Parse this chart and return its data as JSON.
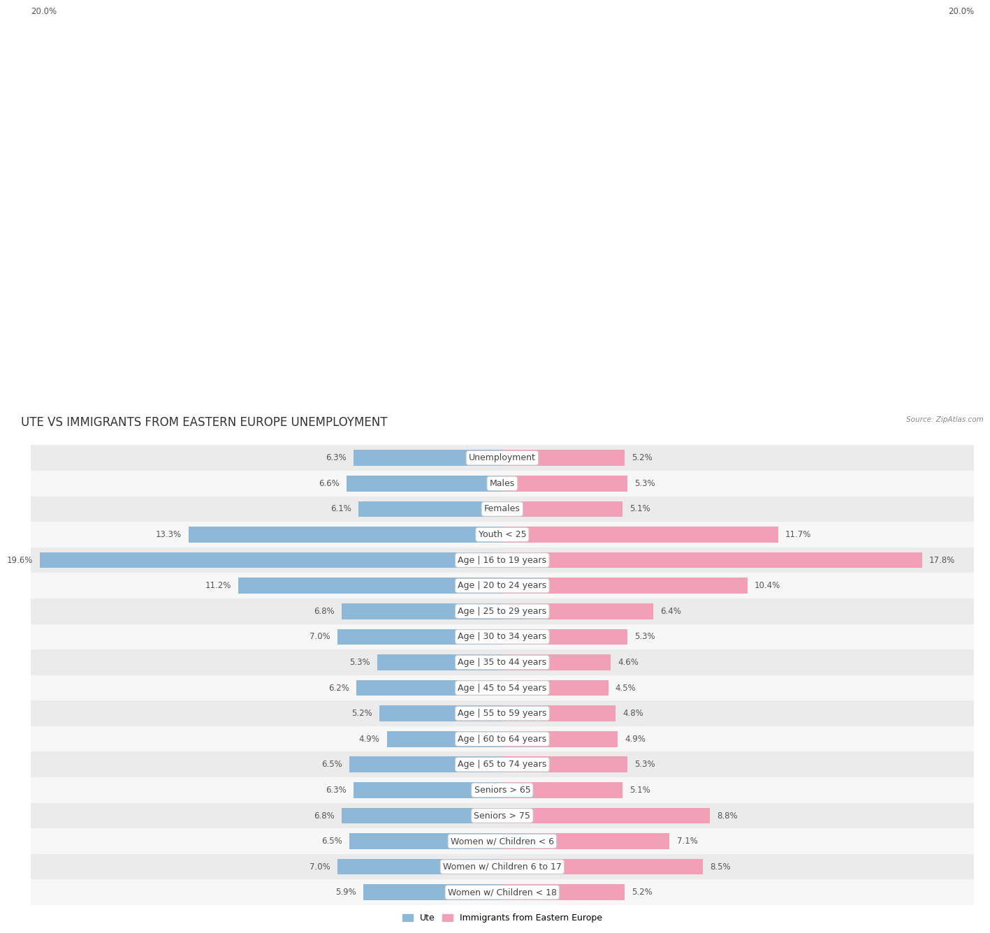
{
  "title": "UTE VS IMMIGRANTS FROM EASTERN EUROPE UNEMPLOYMENT",
  "source": "Source: ZipAtlas.com",
  "categories": [
    "Unemployment",
    "Males",
    "Females",
    "Youth < 25",
    "Age | 16 to 19 years",
    "Age | 20 to 24 years",
    "Age | 25 to 29 years",
    "Age | 30 to 34 years",
    "Age | 35 to 44 years",
    "Age | 45 to 54 years",
    "Age | 55 to 59 years",
    "Age | 60 to 64 years",
    "Age | 65 to 74 years",
    "Seniors > 65",
    "Seniors > 75",
    "Women w/ Children < 6",
    "Women w/ Children 6 to 17",
    "Women w/ Children < 18"
  ],
  "ute_values": [
    6.3,
    6.6,
    6.1,
    13.3,
    19.6,
    11.2,
    6.8,
    7.0,
    5.3,
    6.2,
    5.2,
    4.9,
    6.5,
    6.3,
    6.8,
    6.5,
    7.0,
    5.9
  ],
  "immigrant_values": [
    5.2,
    5.3,
    5.1,
    11.7,
    17.8,
    10.4,
    6.4,
    5.3,
    4.6,
    4.5,
    4.8,
    4.9,
    5.3,
    5.1,
    8.8,
    7.1,
    8.5,
    5.2
  ],
  "ute_color": "#8eb8d8",
  "immigrant_color": "#f2a0b8",
  "axis_max": 20.0,
  "bar_height": 0.62,
  "row_bg_even": "#ebebeb",
  "row_bg_odd": "#f7f7f7",
  "legend_ute": "Ute",
  "legend_immigrant": "Immigrants from Eastern Europe",
  "title_fontsize": 12,
  "label_fontsize": 9,
  "value_fontsize": 8.5
}
